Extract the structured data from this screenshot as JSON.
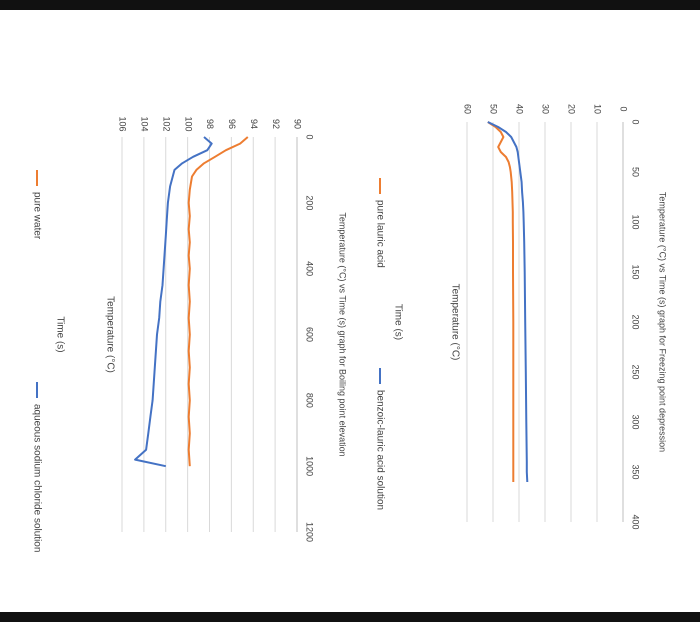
{
  "chart_data": [
    {
      "type": "line",
      "title": "Temperature (°C) vs Time (s) graph for Freezing point depression",
      "xlabel": "Time (s)",
      "ylabel": "Temperature (°C)",
      "xlim": [
        0,
        400
      ],
      "ylim": [
        0,
        60
      ],
      "xticks": [
        0,
        50,
        100,
        150,
        200,
        250,
        300,
        350,
        400
      ],
      "yticks": [
        0,
        10,
        20,
        30,
        40,
        50,
        60
      ],
      "grid": true,
      "legend": "bottom",
      "series": [
        {
          "name": "pure lauric acid",
          "color": "#ED7D31",
          "x": [
            0,
            5,
            10,
            15,
            20,
            25,
            30,
            35,
            40,
            45,
            50,
            55,
            60,
            70,
            80,
            90,
            100,
            120,
            150,
            200,
            250,
            300,
            350,
            360
          ],
          "y": [
            52,
            49,
            47,
            46,
            47,
            48,
            47,
            45,
            44,
            43.5,
            43.2,
            43,
            42.8,
            42.6,
            42.5,
            42.4,
            42.4,
            42.3,
            42.3,
            42.2,
            42.2,
            42.2,
            42.2,
            42.2
          ]
        },
        {
          "name": "benzoic-lauric acid solution",
          "color": "#4472C4",
          "x": [
            0,
            5,
            10,
            15,
            20,
            25,
            30,
            40,
            50,
            60,
            70,
            80,
            90,
            100,
            120,
            150,
            200,
            250,
            300,
            340,
            350,
            360
          ],
          "y": [
            52,
            48,
            45,
            43,
            42,
            41,
            40.5,
            40,
            39.5,
            39,
            38.8,
            38.5,
            38.3,
            38.2,
            38,
            37.8,
            37.6,
            37.4,
            37.2,
            37,
            37,
            36.8
          ]
        }
      ]
    },
    {
      "type": "line",
      "title": "Temperature (°C) vs Time (s) graph for Boiling point elevation",
      "xlabel": "Time (s)",
      "ylabel": "Temperature (°C)",
      "xlim": [
        0,
        1200
      ],
      "ylim": [
        90,
        106
      ],
      "xticks": [
        0,
        200,
        400,
        600,
        800,
        1000,
        1200
      ],
      "yticks": [
        90,
        92,
        94,
        96,
        98,
        100,
        102,
        104,
        106
      ],
      "grid": true,
      "legend": "bottom",
      "series": [
        {
          "name": "pure water",
          "color": "#ED7D31",
          "x": [
            0,
            20,
            40,
            60,
            80,
            100,
            120,
            140,
            160,
            200,
            240,
            280,
            320,
            360,
            400,
            450,
            500,
            550,
            600,
            650,
            700,
            750,
            800,
            850,
            900,
            950,
            1000
          ],
          "y": [
            94.5,
            95.2,
            96.5,
            97.5,
            98.5,
            99.2,
            99.6,
            99.7,
            99.8,
            99.9,
            99.8,
            99.9,
            99.8,
            99.9,
            99.8,
            99.9,
            99.8,
            99.9,
            99.8,
            99.9,
            99.8,
            99.9,
            99.8,
            99.9,
            99.8,
            99.9,
            99.8
          ]
        },
        {
          "name": "aqueous sodium chloride solution",
          "color": "#4472C4",
          "x": [
            0,
            20,
            40,
            60,
            80,
            100,
            150,
            200,
            250,
            300,
            350,
            400,
            450,
            500,
            550,
            600,
            650,
            700,
            750,
            800,
            850,
            900,
            950,
            980,
            1000
          ],
          "y": [
            98.5,
            97.8,
            98.2,
            99.5,
            100.5,
            101.2,
            101.6,
            101.8,
            101.9,
            102.0,
            102.1,
            102.2,
            102.3,
            102.5,
            102.6,
            102.8,
            102.9,
            103.0,
            103.1,
            103.2,
            103.4,
            103.6,
            103.8,
            104.8,
            102.0
          ]
        }
      ]
    }
  ]
}
